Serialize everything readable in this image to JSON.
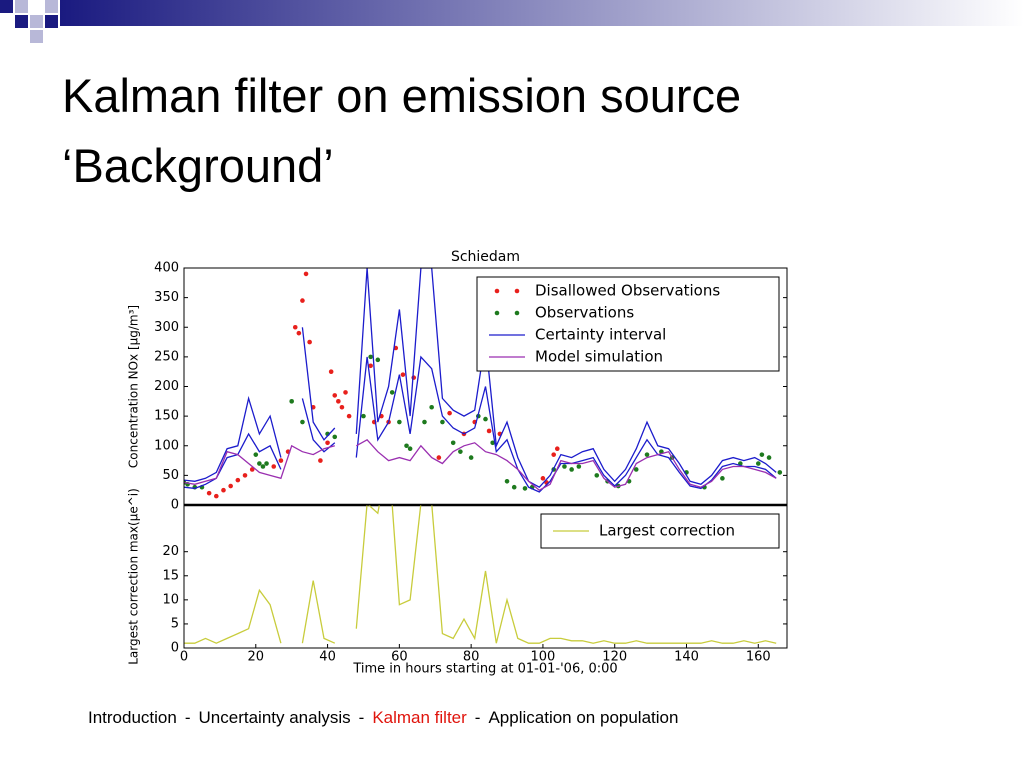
{
  "slide": {
    "title_lines": [
      "Kalman filter on emission source",
      "‘Background’"
    ],
    "footer": [
      {
        "text": "Introduction",
        "color": "#000000"
      },
      {
        "text": "-",
        "color": "#000000"
      },
      {
        "text": "Uncertainty analysis",
        "color": "#000000"
      },
      {
        "text": "-",
        "color": "#000000"
      },
      {
        "text": "Kalman filter",
        "color": "#e0140c"
      },
      {
        "text": "-",
        "color": "#000000"
      },
      {
        "text": "Application on population",
        "color": "#000000"
      }
    ]
  },
  "chart_data": [
    {
      "type": "line",
      "title": "Schiedam",
      "y_label": "Concentration NOx [μg/m³]",
      "xlim": [
        0,
        168
      ],
      "ylim": [
        0,
        400
      ],
      "yticks": [
        0,
        50,
        100,
        150,
        200,
        250,
        300,
        350,
        400
      ],
      "legend": "upper right",
      "x": [
        0,
        3,
        6,
        9,
        12,
        15,
        18,
        21,
        24,
        27,
        30,
        33,
        36,
        39,
        42,
        45,
        48,
        51,
        54,
        57,
        60,
        63,
        66,
        69,
        72,
        75,
        78,
        81,
        84,
        87,
        90,
        93,
        96,
        99,
        102,
        105,
        108,
        111,
        114,
        117,
        120,
        123,
        126,
        129,
        132,
        135,
        138,
        141,
        144,
        147,
        150,
        153,
        156,
        159,
        162,
        165
      ],
      "series": [
        {
          "name": "Disallowed Observations",
          "type": "scatter",
          "color": "#e8201c",
          "x": [
            7,
            9,
            11,
            13,
            15,
            17,
            19,
            25,
            27,
            29,
            31,
            32,
            33,
            34,
            35,
            36,
            38,
            40,
            41,
            42,
            43,
            44,
            45,
            46,
            52,
            53,
            55,
            57,
            59,
            61,
            64,
            71,
            74,
            78,
            81,
            85,
            88,
            100,
            101,
            103,
            104
          ],
          "values": [
            20,
            15,
            25,
            32,
            42,
            50,
            60,
            65,
            75,
            90,
            300,
            290,
            345,
            390,
            275,
            165,
            75,
            105,
            225,
            185,
            175,
            165,
            190,
            150,
            235,
            140,
            150,
            140,
            265,
            220,
            215,
            80,
            155,
            120,
            140,
            125,
            120,
            45,
            38,
            85,
            95
          ]
        },
        {
          "name": "Observations",
          "type": "scatter",
          "color": "#1e7a1e",
          "x": [
            0,
            1,
            3,
            5,
            20,
            21,
            22,
            23,
            30,
            33,
            40,
            42,
            50,
            52,
            54,
            58,
            60,
            62,
            63,
            67,
            69,
            72,
            75,
            77,
            80,
            82,
            84,
            86,
            90,
            92,
            95,
            97,
            103,
            106,
            108,
            110,
            115,
            118,
            121,
            124,
            126,
            129,
            133,
            136,
            140,
            145,
            150,
            155,
            160,
            161,
            163,
            166
          ],
          "values": [
            38,
            35,
            30,
            30,
            85,
            70,
            65,
            70,
            175,
            140,
            120,
            115,
            150,
            250,
            245,
            190,
            140,
            100,
            95,
            140,
            165,
            140,
            105,
            90,
            80,
            150,
            145,
            105,
            40,
            30,
            28,
            30,
            60,
            65,
            60,
            65,
            50,
            40,
            32,
            40,
            60,
            85,
            90,
            80,
            55,
            30,
            45,
            70,
            70,
            85,
            80,
            55
          ]
        },
        {
          "name": "Certainty interval",
          "type": "line",
          "color": "#1c1ccc",
          "values": [
            42,
            40,
            45,
            55,
            95,
            100,
            180,
            120,
            150,
            80,
            null,
            300,
            140,
            110,
            130,
            null,
            120,
            400,
            140,
            200,
            330,
            150,
            400,
            400,
            180,
            160,
            150,
            160,
            280,
            100,
            140,
            80,
            40,
            30,
            50,
            85,
            80,
            90,
            95,
            60,
            40,
            60,
            95,
            140,
            100,
            95,
            70,
            40,
            35,
            50,
            75,
            80,
            75,
            80,
            70,
            55
          ],
          "lower": [
            30,
            28,
            35,
            45,
            80,
            85,
            120,
            90,
            100,
            60,
            null,
            180,
            110,
            90,
            105,
            null,
            80,
            250,
            110,
            140,
            220,
            120,
            250,
            230,
            150,
            130,
            120,
            130,
            200,
            90,
            110,
            60,
            30,
            22,
            40,
            70,
            70,
            75,
            80,
            50,
            32,
            50,
            80,
            110,
            85,
            80,
            55,
            32,
            28,
            42,
            65,
            70,
            65,
            65,
            60,
            45
          ]
        },
        {
          "name": "Model simulation",
          "type": "line",
          "color": "#9a2fb0",
          "values": [
            38,
            35,
            40,
            45,
            90,
            85,
            70,
            55,
            50,
            45,
            100,
            90,
            85,
            95,
            100,
            null,
            100,
            110,
            90,
            75,
            80,
            75,
            100,
            80,
            70,
            90,
            100,
            105,
            90,
            85,
            75,
            60,
            40,
            25,
            35,
            75,
            70,
            70,
            75,
            45,
            30,
            35,
            70,
            80,
            85,
            90,
            60,
            35,
            30,
            40,
            60,
            65,
            65,
            60,
            55,
            45
          ]
        }
      ]
    },
    {
      "type": "line",
      "y_label": "Largest correction max(μe^i)",
      "x_label": "Time in hours starting at 01-01-'06, 0:00",
      "xlim": [
        0,
        168
      ],
      "ylim": [
        0,
        29.7
      ],
      "xticks": [
        0,
        20,
        40,
        60,
        80,
        100,
        120,
        140,
        160
      ],
      "yticks": [
        0,
        5,
        10,
        15,
        20
      ],
      "legend": "upper right",
      "x": [
        0,
        3,
        6,
        9,
        12,
        15,
        18,
        21,
        24,
        27,
        30,
        33,
        36,
        39,
        42,
        45,
        48,
        51,
        54,
        57,
        60,
        63,
        66,
        69,
        72,
        75,
        78,
        81,
        84,
        87,
        90,
        93,
        96,
        99,
        102,
        105,
        108,
        111,
        114,
        117,
        120,
        123,
        126,
        129,
        132,
        135,
        138,
        141,
        144,
        147,
        150,
        153,
        156,
        159,
        162,
        165
      ],
      "series": [
        {
          "name": "Largest correction",
          "type": "line",
          "color": "#c8cc3c",
          "values": [
            1,
            1,
            2,
            1,
            2,
            3,
            4,
            12,
            9,
            1,
            null,
            1,
            14,
            2,
            1,
            null,
            4,
            30,
            28,
            40,
            9,
            10,
            30,
            30,
            3,
            2,
            6,
            2,
            16,
            1,
            10,
            2,
            1,
            1,
            2,
            2,
            1.5,
            1.5,
            1,
            1.5,
            1,
            1,
            1.5,
            1,
            1,
            1,
            1,
            1,
            1,
            1.5,
            1,
            1,
            1.5,
            1,
            1.5,
            1
          ]
        }
      ]
    }
  ]
}
